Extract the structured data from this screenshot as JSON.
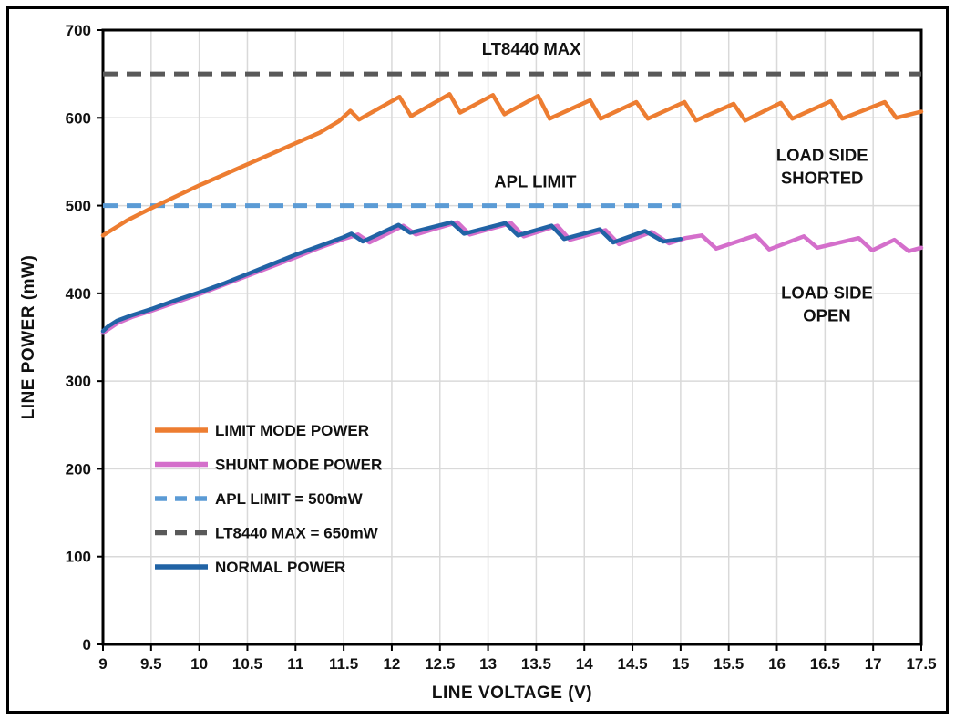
{
  "chart_data": {
    "type": "line",
    "title": "",
    "xlabel": "LINE VOLTAGE (V)",
    "ylabel": "LINE POWER (mW)",
    "xlim": [
      9,
      17.5
    ],
    "ylim": [
      0,
      700
    ],
    "x_ticks": [
      9,
      9.5,
      10,
      10.5,
      11,
      11.5,
      12,
      12.5,
      13,
      13.5,
      14,
      14.5,
      15,
      15.5,
      16,
      16.5,
      17,
      17.5
    ],
    "y_ticks": [
      0,
      100,
      200,
      300,
      400,
      500,
      600,
      700
    ],
    "grid": true,
    "grid_color": "#D9D9D9",
    "text_color": "#111111",
    "legend_position": "inside-left-middle",
    "annotations": [
      {
        "lines": [
          "LT8440 MAX"
        ],
        "x": 13.45,
        "y": 672
      },
      {
        "lines": [
          "APL LIMIT"
        ],
        "x": 13.49,
        "y": 521
      },
      {
        "lines": [
          "LOAD SIDE",
          "SHORTED"
        ],
        "x": 16.47,
        "y": 551
      },
      {
        "lines": [
          "LOAD SIDE",
          "OPEN"
        ],
        "x": 16.52,
        "y": 394
      }
    ],
    "series": [
      {
        "name": "LIMIT MODE POWER",
        "color": "#ED7D31",
        "style": "solid",
        "points": [
          [
            9,
            466
          ],
          [
            9.25,
            483
          ],
          [
            9.5,
            497
          ],
          [
            9.75,
            510
          ],
          [
            10,
            523
          ],
          [
            10.25,
            535
          ],
          [
            10.5,
            547
          ],
          [
            10.75,
            559
          ],
          [
            11,
            571
          ],
          [
            11.25,
            583
          ],
          [
            11.45,
            596
          ],
          [
            11.57,
            608
          ],
          [
            11.66,
            598
          ],
          [
            12.08,
            624
          ],
          [
            12.2,
            602
          ],
          [
            12.6,
            627
          ],
          [
            12.71,
            606
          ],
          [
            13.05,
            626
          ],
          [
            13.17,
            604
          ],
          [
            13.52,
            625
          ],
          [
            13.64,
            599
          ],
          [
            14.06,
            620
          ],
          [
            14.17,
            599
          ],
          [
            14.54,
            618
          ],
          [
            14.66,
            599
          ],
          [
            15.04,
            618
          ],
          [
            15.16,
            597
          ],
          [
            15.55,
            616
          ],
          [
            15.67,
            597
          ],
          [
            16.04,
            617
          ],
          [
            16.16,
            599
          ],
          [
            16.56,
            619
          ],
          [
            16.68,
            599
          ],
          [
            17.12,
            618
          ],
          [
            17.24,
            600
          ],
          [
            17.5,
            607
          ]
        ]
      },
      {
        "name": "SHUNT MODE POWER",
        "color": "#D46FCB",
        "style": "solid",
        "points": [
          [
            9,
            355
          ],
          [
            9.15,
            366
          ],
          [
            9.3,
            373
          ],
          [
            9.5,
            380
          ],
          [
            10,
            399
          ],
          [
            10.5,
            420
          ],
          [
            11,
            441
          ],
          [
            11.25,
            452
          ],
          [
            11.5,
            462
          ],
          [
            11.65,
            467
          ],
          [
            11.77,
            458
          ],
          [
            12.12,
            477
          ],
          [
            12.25,
            467
          ],
          [
            12.68,
            481
          ],
          [
            12.81,
            467
          ],
          [
            13.24,
            480
          ],
          [
            13.37,
            465
          ],
          [
            13.72,
            477
          ],
          [
            13.85,
            461
          ],
          [
            14.22,
            472
          ],
          [
            14.36,
            456
          ],
          [
            14.7,
            470
          ],
          [
            14.88,
            457
          ],
          [
            15.05,
            463
          ],
          [
            15.22,
            466
          ],
          [
            15.37,
            451
          ],
          [
            15.78,
            466
          ],
          [
            15.92,
            450
          ],
          [
            16.28,
            465
          ],
          [
            16.42,
            452
          ],
          [
            16.85,
            463
          ],
          [
            16.99,
            449
          ],
          [
            17.22,
            461
          ],
          [
            17.37,
            448
          ],
          [
            17.5,
            452
          ]
        ]
      },
      {
        "name": "APL LIMIT = 500mW",
        "color": "#5B9BD5",
        "style": "dashed",
        "points": [
          [
            9,
            500
          ],
          [
            15,
            500
          ]
        ]
      },
      {
        "name": "LT8440 MAX = 650mW",
        "color": "#595959",
        "style": "dashed",
        "points": [
          [
            9,
            650
          ],
          [
            17.5,
            650
          ]
        ]
      },
      {
        "name": "NORMAL POWER",
        "color": "#2163A5",
        "style": "solid",
        "points": [
          [
            9,
            357
          ],
          [
            9.05,
            362
          ],
          [
            9.15,
            369
          ],
          [
            9.3,
            375
          ],
          [
            9.5,
            382
          ],
          [
            9.75,
            392
          ],
          [
            10,
            401
          ],
          [
            10.25,
            411
          ],
          [
            10.5,
            422
          ],
          [
            10.75,
            433
          ],
          [
            11,
            444
          ],
          [
            11.25,
            454
          ],
          [
            11.5,
            464
          ],
          [
            11.58,
            468
          ],
          [
            11.7,
            459
          ],
          [
            12.07,
            478
          ],
          [
            12.19,
            469
          ],
          [
            12.62,
            481
          ],
          [
            12.75,
            468
          ],
          [
            13.18,
            480
          ],
          [
            13.31,
            466
          ],
          [
            13.66,
            477
          ],
          [
            13.79,
            462
          ],
          [
            14.16,
            473
          ],
          [
            14.3,
            458
          ],
          [
            14.63,
            471
          ],
          [
            14.82,
            459
          ],
          [
            15,
            462
          ]
        ]
      }
    ]
  }
}
